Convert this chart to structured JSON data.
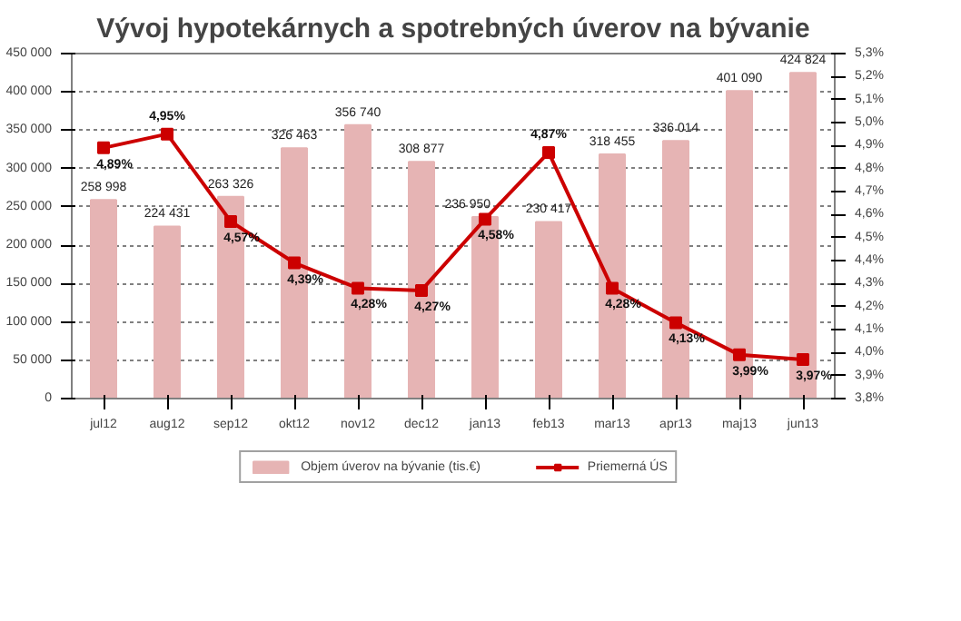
{
  "chart_data": {
    "type": "bar",
    "title": "Vývoj hypotekárnych a spotrebných úverov na bývanie",
    "categories": [
      "jul12",
      "aug12",
      "sep12",
      "okt12",
      "nov12",
      "dec12",
      "jan13",
      "feb13",
      "mar13",
      "apr13",
      "maj13",
      "jun13"
    ],
    "series": [
      {
        "name": "Objem úverov na bývanie (tis.€)",
        "color": "#e6b4b4",
        "values": [
          258998,
          224431,
          263326,
          326463,
          356740,
          308877,
          236950,
          230417,
          318455,
          336014,
          401090,
          424824
        ],
        "value_labels": [
          "258 998",
          "224 431",
          "263 326",
          "326 463",
          "356 740",
          "308 877",
          "236 950",
          "230 417",
          "318 455",
          "336 014",
          "401 090",
          "424 824"
        ]
      },
      {
        "name": "Priemerná ÚS",
        "type": "line",
        "axis": "y2",
        "color": "#cc0000",
        "marker": "square",
        "values": [
          4.89,
          4.95,
          4.57,
          4.39,
          4.28,
          4.27,
          4.58,
          4.87,
          4.28,
          4.13,
          3.99,
          3.97
        ],
        "value_labels": [
          "4,89%",
          "4,95%",
          "4,57%",
          "4,39%",
          "4,28%",
          "4,27%",
          "4,58%",
          "4,87%",
          "4,28%",
          "4,13%",
          "3,99%",
          "3,97%"
        ]
      }
    ],
    "ylim": [
      0,
      450000
    ],
    "yticks": [
      {
        "value": 0,
        "label": "0"
      },
      {
        "value": 50000,
        "label": "50 000"
      },
      {
        "value": 100000,
        "label": "100 000"
      },
      {
        "value": 150000,
        "label": "150 000"
      },
      {
        "value": 200000,
        "label": "200 000"
      },
      {
        "value": 250000,
        "label": "250 000"
      },
      {
        "value": 300000,
        "label": "300 000"
      },
      {
        "value": 350000,
        "label": "350 000"
      },
      {
        "value": 400000,
        "label": "400 000"
      },
      {
        "value": 450000,
        "label": "450 000"
      }
    ],
    "y2lim": [
      3.8,
      5.3
    ],
    "y2ticks": [
      {
        "value": 3.8,
        "label": "3,8%"
      },
      {
        "value": 3.9,
        "label": "3,9%"
      },
      {
        "value": 4.0,
        "label": "4,0%"
      },
      {
        "value": 4.1,
        "label": "4,1%"
      },
      {
        "value": 4.2,
        "label": "4,2%"
      },
      {
        "value": 4.3,
        "label": "4,3%"
      },
      {
        "value": 4.4,
        "label": "4,4%"
      },
      {
        "value": 4.5,
        "label": "4,5%"
      },
      {
        "value": 4.6,
        "label": "4,6%"
      },
      {
        "value": 4.7,
        "label": "4,7%"
      },
      {
        "value": 4.8,
        "label": "4,8%"
      },
      {
        "value": 4.9,
        "label": "4,9%"
      },
      {
        "value": 5.0,
        "label": "5,0%"
      },
      {
        "value": 5.1,
        "label": "5,1%"
      },
      {
        "value": 5.2,
        "label": "5,2%"
      },
      {
        "value": 5.3,
        "label": "5,3%"
      }
    ],
    "grid": "y",
    "legend": "bottom"
  }
}
